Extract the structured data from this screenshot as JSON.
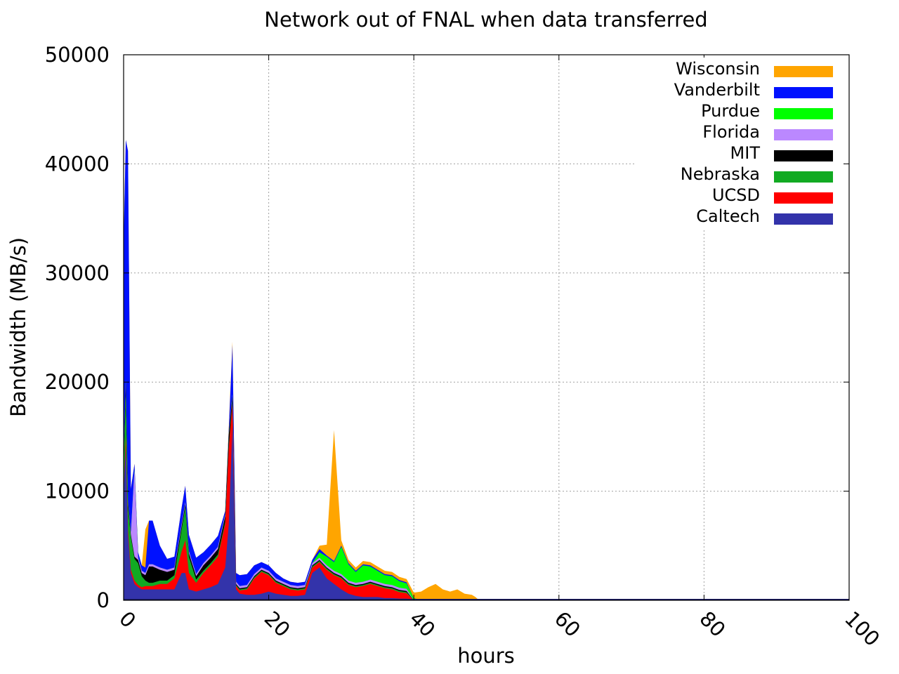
{
  "chart_data": {
    "type": "area",
    "title": "Network out of FNAL when data transferred",
    "xlabel": "hours",
    "ylabel": "Bandwidth (MB/s)",
    "xlim": [
      0,
      100
    ],
    "ylim": [
      0,
      50000
    ],
    "xticks": [
      "0",
      "20",
      "40",
      "60",
      "80",
      "100"
    ],
    "yticks": [
      "0",
      "10000",
      "20000",
      "30000",
      "40000",
      "50000"
    ],
    "grid": true,
    "legend_position": "top-right",
    "stacking": "stacked",
    "x": [
      0,
      0.3,
      0.6,
      1,
      1.5,
      2,
      2.5,
      3,
      3.5,
      4,
      5,
      6,
      7,
      8,
      8.5,
      9,
      10,
      11,
      12,
      13,
      14,
      14.5,
      15,
      15.5,
      16,
      17,
      18,
      19,
      20,
      21,
      22,
      23,
      24,
      25,
      26,
      27,
      28,
      29,
      30,
      31,
      32,
      33,
      34,
      35,
      36,
      37,
      38,
      39,
      40,
      41,
      42,
      43,
      44,
      45,
      46,
      47,
      48,
      48.5,
      49,
      100
    ],
    "series": [
      {
        "name": "Caltech",
        "color": "#3333aa",
        "values": [
          10000,
          14000,
          6000,
          2500,
          1500,
          1200,
          1000,
          1000,
          1000,
          1000,
          1000,
          1000,
          1000,
          2500,
          2500,
          1000,
          800,
          1000,
          1200,
          1500,
          3000,
          7000,
          16000,
          1000,
          600,
          500,
          500,
          600,
          800,
          600,
          500,
          400,
          400,
          500,
          2500,
          3000,
          2000,
          1500,
          1000,
          600,
          400,
          300,
          300,
          300,
          200,
          200,
          150,
          150,
          0,
          0,
          0,
          0,
          0,
          0,
          0,
          0,
          0,
          0,
          0,
          0
        ]
      },
      {
        "name": "UCSD",
        "color": "#ff0000",
        "values": [
          0,
          1000,
          500,
          300,
          300,
          200,
          200,
          300,
          300,
          300,
          500,
          500,
          1000,
          2000,
          3000,
          1500,
          800,
          1500,
          2000,
          2500,
          4000,
          7000,
          2000,
          300,
          300,
          500,
          1500,
          2000,
          1500,
          1000,
          800,
          600,
          500,
          500,
          500,
          500,
          800,
          800,
          1000,
          800,
          800,
          1000,
          1200,
          1000,
          900,
          800,
          600,
          500,
          0,
          0,
          0,
          0,
          0,
          0,
          0,
          0,
          0,
          0,
          0,
          0
        ]
      },
      {
        "name": "Nebraska",
        "color": "#11aa22",
        "values": [
          2000,
          4000,
          2000,
          3000,
          2000,
          2000,
          1000,
          500,
          300,
          300,
          300,
          300,
          300,
          2000,
          3000,
          1500,
          300,
          200,
          200,
          200,
          200,
          200,
          200,
          100,
          100,
          100,
          100,
          100,
          100,
          100,
          100,
          100,
          100,
          100,
          100,
          100,
          100,
          100,
          100,
          100,
          100,
          100,
          100,
          100,
          100,
          100,
          100,
          100,
          0,
          0,
          0,
          0,
          0,
          0,
          0,
          0,
          0,
          0,
          0,
          0
        ]
      },
      {
        "name": "MIT",
        "color": "#000000",
        "values": [
          500,
          1000,
          500,
          200,
          200,
          300,
          300,
          500,
          1500,
          1500,
          1000,
          800,
          500,
          300,
          300,
          300,
          300,
          500,
          500,
          500,
          500,
          1000,
          500,
          100,
          100,
          100,
          100,
          100,
          100,
          100,
          100,
          100,
          100,
          100,
          100,
          100,
          100,
          100,
          100,
          100,
          100,
          100,
          100,
          100,
          100,
          100,
          100,
          100,
          0,
          0,
          0,
          0,
          0,
          0,
          0,
          0,
          0,
          0,
          0,
          0
        ]
      },
      {
        "name": "Florida",
        "color": "#bb88ff",
        "values": [
          200,
          200,
          200,
          200,
          8000,
          200,
          200,
          200,
          200,
          200,
          200,
          200,
          200,
          200,
          200,
          200,
          200,
          200,
          200,
          200,
          200,
          200,
          200,
          200,
          200,
          200,
          200,
          200,
          200,
          200,
          200,
          200,
          200,
          200,
          200,
          200,
          200,
          200,
          200,
          200,
          200,
          200,
          200,
          200,
          200,
          200,
          200,
          200,
          0,
          0,
          0,
          0,
          0,
          0,
          0,
          0,
          0,
          0,
          0,
          0
        ]
      },
      {
        "name": "Purdue",
        "color": "#00ff00",
        "values": [
          0,
          0,
          0,
          0,
          0,
          0,
          0,
          0,
          0,
          0,
          0,
          0,
          0,
          0,
          0,
          0,
          0,
          0,
          0,
          0,
          0,
          0,
          0,
          0,
          0,
          0,
          0,
          0,
          0,
          0,
          0,
          0,
          0,
          0,
          0,
          500,
          800,
          800,
          2500,
          1500,
          1000,
          1500,
          1200,
          1000,
          800,
          800,
          600,
          500,
          200,
          0,
          0,
          0,
          0,
          0,
          0,
          0,
          0,
          0,
          0,
          0
        ]
      },
      {
        "name": "Vanderbilt",
        "color": "#0011ff",
        "values": [
          20000,
          22000,
          32000,
          4000,
          500,
          500,
          500,
          500,
          4000,
          4000,
          2000,
          1000,
          1000,
          1500,
          1500,
          1500,
          1500,
          1000,
          1000,
          1000,
          300,
          300,
          4500,
          800,
          1000,
          1000,
          800,
          500,
          500,
          500,
          300,
          300,
          300,
          300,
          300,
          300,
          100,
          100,
          100,
          100,
          100,
          100,
          100,
          100,
          100,
          100,
          100,
          100,
          0,
          0,
          0,
          0,
          0,
          0,
          0,
          0,
          0,
          0,
          0,
          0
        ]
      },
      {
        "name": "Wisconsin",
        "color": "#ffa500",
        "values": [
          0,
          0,
          0,
          0,
          0,
          0,
          0,
          3500,
          0,
          0,
          0,
          0,
          0,
          0,
          0,
          0,
          0,
          0,
          0,
          0,
          0,
          300,
          300,
          0,
          0,
          0,
          0,
          0,
          0,
          0,
          0,
          0,
          0,
          0,
          0,
          300,
          1000,
          12000,
          500,
          300,
          300,
          300,
          300,
          300,
          300,
          300,
          300,
          300,
          500,
          800,
          1200,
          1500,
          1000,
          800,
          1000,
          600,
          500,
          300,
          0,
          0
        ]
      }
    ]
  }
}
